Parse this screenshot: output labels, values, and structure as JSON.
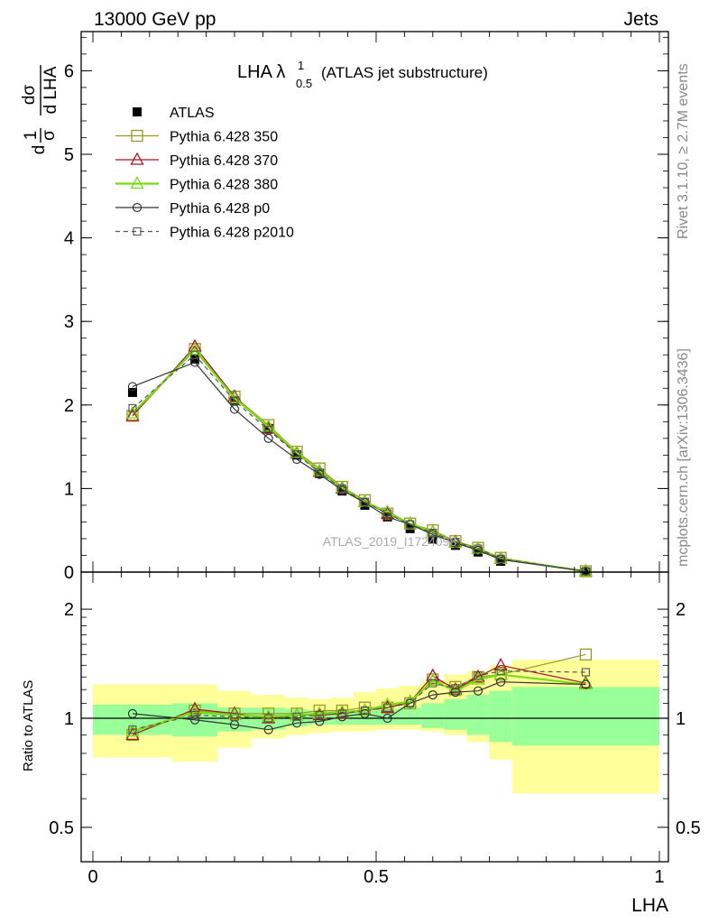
{
  "header": {
    "left": "13000 GeV pp",
    "right": "Jets"
  },
  "side_labels": {
    "rivet": "Rivet 3.1.10, ≥ 2.7M events",
    "mcplots": "mcplots.cern.ch [arXiv:1306.3436]"
  },
  "watermark": "ATLAS_2019_I1724098",
  "chart_data": [
    {
      "type": "line",
      "title": "LHA λ¹₀.₅ (ATLAS jet substructure)",
      "title_main": "LHA λ",
      "title_sup": "1",
      "title_sub": "0.5",
      "title_rest": "(ATLAS jet substructure)",
      "ylabel": "1/σ dσ/d LHA",
      "xlim": [
        0,
        1
      ],
      "ylim": [
        0,
        6.5
      ],
      "yticks": [
        "0",
        "1",
        "2",
        "3",
        "4",
        "5",
        "6"
      ],
      "legend_position": "top-left",
      "x": [
        0.07,
        0.18,
        0.25,
        0.31,
        0.36,
        0.4,
        0.44,
        0.48,
        0.52,
        0.56,
        0.6,
        0.64,
        0.68,
        0.72,
        0.87
      ],
      "series": [
        {
          "name": "ATLAS",
          "color": "#000000",
          "marker": "filled-square",
          "line": "none",
          "values": [
            2.15,
            2.55,
            2.05,
            1.72,
            1.4,
            1.18,
            0.97,
            0.8,
            0.66,
            0.52,
            0.39,
            0.32,
            0.24,
            0.13,
            0.0
          ]
        },
        {
          "name": "Pythia 6.428 350",
          "color": "#999922",
          "marker": "open-square",
          "line": "solid",
          "values": [
            1.87,
            2.67,
            2.1,
            1.76,
            1.44,
            1.24,
            1.02,
            0.86,
            0.7,
            0.58,
            0.5,
            0.37,
            0.29,
            0.17,
            0.01
          ]
        },
        {
          "name": "Pythia 6.428 370",
          "color": "#aa1122",
          "marker": "open-triangle",
          "line": "solid",
          "values": [
            1.87,
            2.7,
            2.1,
            1.72,
            1.42,
            1.2,
            1.0,
            0.84,
            0.7,
            0.58,
            0.48,
            0.36,
            0.28,
            0.16,
            0.01
          ]
        },
        {
          "name": "Pythia 6.428 380",
          "color": "#77dd11",
          "marker": "open-triangle",
          "line": "solid-thick",
          "values": [
            1.9,
            2.66,
            2.08,
            1.74,
            1.43,
            1.21,
            1.01,
            0.84,
            0.72,
            0.58,
            0.48,
            0.35,
            0.28,
            0.16,
            0.01
          ]
        },
        {
          "name": "Pythia 6.428 p0",
          "color": "#333333",
          "marker": "open-circle",
          "line": "solid",
          "values": [
            2.22,
            2.51,
            1.95,
            1.6,
            1.35,
            1.17,
            0.98,
            0.83,
            0.66,
            0.57,
            0.45,
            0.35,
            0.26,
            0.15,
            0.01
          ]
        },
        {
          "name": "Pythia 6.428 p2010",
          "color": "#555555",
          "marker": "open-square-small",
          "line": "dashed",
          "values": [
            1.96,
            2.6,
            2.05,
            1.7,
            1.41,
            1.19,
            1.0,
            0.84,
            0.7,
            0.57,
            0.47,
            0.36,
            0.28,
            0.16,
            0.01
          ]
        }
      ]
    },
    {
      "type": "line",
      "ylabel": "Ratio to ATLAS",
      "xlabel": "LHA",
      "xlim": [
        0,
        1
      ],
      "ylim": [
        0.35,
        2.25
      ],
      "yticks": [
        "0.5",
        "1",
        "2"
      ],
      "xticks": [
        "0",
        "0.5",
        "1"
      ],
      "reference": 1,
      "uncertainty_bands": {
        "edges": [
          0,
          0.14,
          0.22,
          0.28,
          0.34,
          0.38,
          0.42,
          0.46,
          0.5,
          0.54,
          0.58,
          0.62,
          0.66,
          0.7,
          0.74,
          1.0
        ],
        "inner_low": [
          0.9,
          0.89,
          0.92,
          0.93,
          0.95,
          0.96,
          0.96,
          0.96,
          0.96,
          0.96,
          0.94,
          0.93,
          0.9,
          0.86,
          0.84
        ],
        "inner_high": [
          1.09,
          1.1,
          1.07,
          1.07,
          1.06,
          1.05,
          1.05,
          1.05,
          1.06,
          1.07,
          1.1,
          1.13,
          1.16,
          1.19,
          1.22
        ],
        "outer_low": [
          0.78,
          0.76,
          0.83,
          0.88,
          0.9,
          0.91,
          0.92,
          0.92,
          0.93,
          0.93,
          0.92,
          0.9,
          0.86,
          0.77,
          0.62
        ],
        "outer_high": [
          1.24,
          1.24,
          1.19,
          1.16,
          1.14,
          1.13,
          1.14,
          1.18,
          1.21,
          1.23,
          1.27,
          1.32,
          1.35,
          1.4,
          1.45
        ]
      },
      "x": [
        0.07,
        0.18,
        0.25,
        0.31,
        0.36,
        0.4,
        0.44,
        0.48,
        0.52,
        0.56,
        0.6,
        0.64,
        0.68,
        0.72,
        0.87
      ],
      "series": [
        {
          "name": "Pythia 6.428 350",
          "values": [
            0.9,
            1.05,
            1.03,
            1.03,
            1.03,
            1.05,
            1.05,
            1.07,
            1.07,
            1.1,
            1.28,
            1.22,
            1.3,
            1.32,
            1.5
          ]
        },
        {
          "name": "Pythia 6.428 370",
          "values": [
            0.9,
            1.06,
            1.03,
            1.0,
            1.02,
            1.02,
            1.03,
            1.05,
            1.07,
            1.11,
            1.31,
            1.2,
            1.3,
            1.4,
            1.25
          ]
        },
        {
          "name": "Pythia 6.428 380",
          "values": [
            0.92,
            1.04,
            1.02,
            1.01,
            1.02,
            1.03,
            1.04,
            1.05,
            1.09,
            1.11,
            1.27,
            1.19,
            1.28,
            1.32,
            1.24
          ]
        },
        {
          "name": "Pythia 6.428 p0",
          "values": [
            1.03,
            0.99,
            0.96,
            0.93,
            0.97,
            0.98,
            1.01,
            1.03,
            1.0,
            1.1,
            1.16,
            1.18,
            1.19,
            1.26,
            1.24
          ]
        },
        {
          "name": "Pythia 6.428 p2010",
          "values": [
            0.93,
            1.02,
            1.01,
            1.0,
            1.01,
            1.02,
            1.03,
            1.05,
            1.07,
            1.1,
            1.25,
            1.21,
            1.31,
            1.35,
            1.34
          ]
        }
      ]
    }
  ]
}
